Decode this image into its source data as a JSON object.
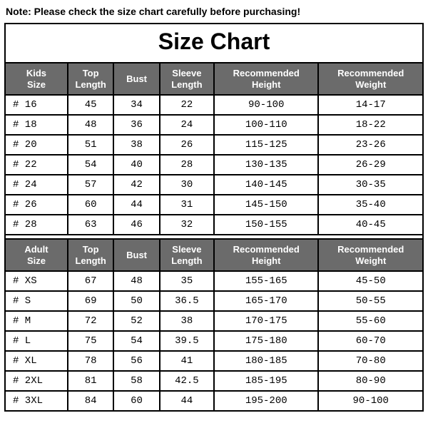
{
  "note": "Note: Please check the size chart carefully before purchasing!",
  "title": "Size Chart",
  "colors": {
    "header_bg": "#6b6b6b",
    "header_text": "#ffffff",
    "border": "#000000",
    "text": "#000000",
    "background": "#ffffff"
  },
  "tables": [
    {
      "columns": [
        "Kids Size",
        "Top Length",
        "Bust",
        "Sleeve Length",
        "Recommended Height",
        "Recommended Weight"
      ],
      "rows": [
        [
          "# 16",
          "45",
          "34",
          "22",
          "90-100",
          "14-17"
        ],
        [
          "# 18",
          "48",
          "36",
          "24",
          "100-110",
          "18-22"
        ],
        [
          "# 20",
          "51",
          "38",
          "26",
          "115-125",
          "23-26"
        ],
        [
          "# 22",
          "54",
          "40",
          "28",
          "130-135",
          "26-29"
        ],
        [
          "# 24",
          "57",
          "42",
          "30",
          "140-145",
          "30-35"
        ],
        [
          "# 26",
          "60",
          "44",
          "31",
          "145-150",
          "35-40"
        ],
        [
          "# 28",
          "63",
          "46",
          "32",
          "150-155",
          "40-45"
        ]
      ]
    },
    {
      "columns": [
        "Adult Size",
        "Top Length",
        "Bust",
        "Sleeve Length",
        "Recommended Height",
        "Recommended Weight"
      ],
      "rows": [
        [
          "# XS",
          "67",
          "48",
          "35",
          "155-165",
          "45-50"
        ],
        [
          "# S",
          "69",
          "50",
          "36.5",
          "165-170",
          "50-55"
        ],
        [
          "# M",
          "72",
          "52",
          "38",
          "170-175",
          "55-60"
        ],
        [
          "# L",
          "75",
          "54",
          "39.5",
          "175-180",
          "60-70"
        ],
        [
          "# XL",
          "78",
          "56",
          "41",
          "180-185",
          "70-80"
        ],
        [
          "# 2XL",
          "81",
          "58",
          "42.5",
          "185-195",
          "80-90"
        ],
        [
          "# 3XL",
          "84",
          "60",
          "44",
          "195-200",
          "90-100"
        ]
      ]
    }
  ]
}
